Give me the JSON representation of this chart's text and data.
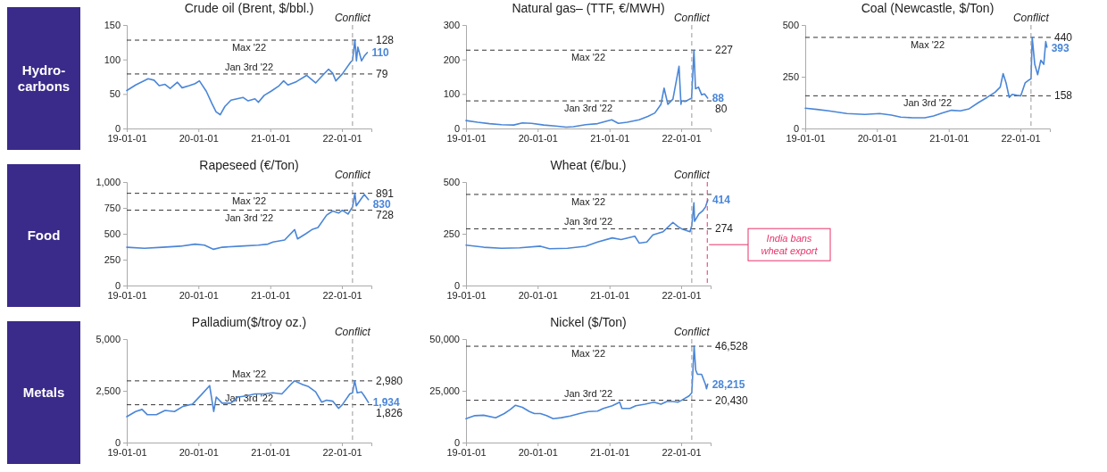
{
  "chart_data": [
    {
      "type": "other",
      "title": "Hydro-carbons"
    },
    {
      "type": "line",
      "title": "Crude oil (Brent, $/bbl.)",
      "xlim": [
        "2019-01-01",
        "2022-05-31"
      ],
      "xticks": [
        {
          "value": "2019-01-01",
          "label": "19-01-01"
        },
        {
          "value": "2020-01-01",
          "label": "20-01-01"
        },
        {
          "value": "2021-01-01",
          "label": "21-01-01"
        },
        {
          "value": "2022-01-01",
          "label": "22-01-01"
        }
      ],
      "ylim": [
        0,
        150
      ],
      "yticks": [
        0,
        50,
        100,
        150
      ],
      "series": [
        {
          "color": "#4a86d8",
          "x": [
            "2019-01-01",
            "2019-02-15",
            "2019-04-20",
            "2019-05-20",
            "2019-06-15",
            "2019-07-15",
            "2019-08-10",
            "2019-09-16",
            "2019-10-10",
            "2019-11-15",
            "2019-12-15",
            "2020-01-06",
            "2020-02-10",
            "2020-03-10",
            "2020-03-31",
            "2020-04-21",
            "2020-05-15",
            "2020-06-15",
            "2020-08-15",
            "2020-09-10",
            "2020-10-15",
            "2020-11-02",
            "2020-12-01",
            "2021-01-05",
            "2021-02-15",
            "2021-03-10",
            "2021-04-01",
            "2021-05-15",
            "2021-07-05",
            "2021-08-20",
            "2021-09-15",
            "2021-10-25",
            "2021-11-15",
            "2021-12-01",
            "2022-01-03",
            "2022-02-14",
            "2022-02-24",
            "2022-03-08",
            "2022-03-16",
            "2022-03-23",
            "2022-04-11",
            "2022-04-25",
            "2022-05-10"
          ],
          "values": [
            55,
            63,
            72,
            70,
            62,
            64,
            58,
            67,
            59,
            62,
            65,
            69,
            54,
            36,
            24,
            20,
            32,
            41,
            45,
            40,
            43,
            38,
            48,
            54,
            62,
            69,
            63,
            68,
            77,
            66,
            74,
            86,
            80,
            69,
            79,
            96,
            99,
            128,
            98,
            118,
            98,
            105,
            110
          ]
        }
      ],
      "ref_lines": [
        {
          "axis": "y",
          "value": 128,
          "label": "Max '22",
          "color": "#333333",
          "line_style": "dashed"
        },
        {
          "axis": "y",
          "value": 79,
          "label": "Jan 3rd '22",
          "color": "#333333",
          "line_style": "dashed"
        },
        {
          "axis": "x",
          "value": "2022-02-24",
          "label": "Conflict",
          "color": "#999999",
          "line_style": "dashed"
        }
      ],
      "annotations": [
        {
          "text": "128",
          "x": "2022-05-31",
          "y": 128
        },
        {
          "text": "79",
          "x": "2022-05-31",
          "y": 79
        },
        {
          "text": "110",
          "x": "2022-05-10",
          "y": 110
        }
      ]
    },
    {
      "type": "line",
      "title": "Natural gas– (TTF, €/MWH)",
      "xlim": [
        "2019-01-01",
        "2022-05-31"
      ],
      "xticks": [
        {
          "value": "2019-01-01",
          "label": "19-01-01"
        },
        {
          "value": "2020-01-01",
          "label": "20-01-01"
        },
        {
          "value": "2021-01-01",
          "label": "21-01-01"
        },
        {
          "value": "2022-01-01",
          "label": "22-01-01"
        }
      ],
      "ylim": [
        0,
        300
      ],
      "yticks": [
        0,
        100,
        200,
        300
      ],
      "series": [
        {
          "color": "#4a86d8",
          "x": [
            "2019-01-01",
            "2019-03-01",
            "2019-05-01",
            "2019-07-01",
            "2019-09-01",
            "2019-10-15",
            "2019-12-01",
            "2020-02-01",
            "2020-04-01",
            "2020-05-25",
            "2020-07-01",
            "2020-09-01",
            "2020-11-01",
            "2021-01-12",
            "2021-02-15",
            "2021-04-01",
            "2021-06-01",
            "2021-07-15",
            "2021-08-20",
            "2021-09-20",
            "2021-10-06",
            "2021-10-25",
            "2021-11-20",
            "2021-12-21",
            "2021-12-31",
            "2022-01-03",
            "2022-01-20",
            "2022-02-23",
            "2022-03-07",
            "2022-03-15",
            "2022-03-30",
            "2022-04-15",
            "2022-04-30",
            "2022-05-16"
          ],
          "values": [
            23,
            18,
            14,
            11,
            10,
            16,
            15,
            10,
            7,
            4,
            5,
            11,
            14,
            25,
            15,
            18,
            25,
            35,
            45,
            70,
            117,
            70,
            85,
            180,
            70,
            80,
            78,
            88,
            227,
            115,
            120,
            98,
            100,
            88
          ]
        }
      ],
      "ref_lines": [
        {
          "axis": "y",
          "value": 227,
          "label": "Max '22",
          "color": "#333333",
          "line_style": "dashed"
        },
        {
          "axis": "y",
          "value": 80,
          "label": "Jan 3rd '22",
          "color": "#333333",
          "line_style": "dashed"
        },
        {
          "axis": "x",
          "value": "2022-02-24",
          "label": "Conflict",
          "color": "#999999",
          "line_style": "dashed"
        }
      ],
      "annotations": [
        {
          "text": "227",
          "x": "2022-05-31",
          "y": 227
        },
        {
          "text": "80",
          "x": "2022-05-31",
          "y": 80
        },
        {
          "text": "88",
          "x": "2022-05-16",
          "y": 88
        }
      ]
    },
    {
      "type": "line",
      "title": "Coal (Newcastle, $/Ton)",
      "xlim": [
        "2019-01-01",
        "2022-05-31"
      ],
      "xticks": [
        {
          "value": "2019-01-01",
          "label": "19-01-01"
        },
        {
          "value": "2020-01-01",
          "label": "20-01-01"
        },
        {
          "value": "2021-01-01",
          "label": "21-01-01"
        },
        {
          "value": "2022-01-01",
          "label": "22-01-01"
        }
      ],
      "ylim": [
        0,
        500
      ],
      "yticks": [
        0,
        250,
        500
      ],
      "series": [
        {
          "color": "#4a86d8",
          "x": [
            "2019-01-01",
            "2019-03-01",
            "2019-05-01",
            "2019-08-01",
            "2019-11-01",
            "2020-01-15",
            "2020-03-15",
            "2020-05-01",
            "2020-07-01",
            "2020-09-01",
            "2020-10-15",
            "2020-12-01",
            "2021-01-15",
            "2021-03-01",
            "2021-04-15",
            "2021-06-01",
            "2021-07-15",
            "2021-08-25",
            "2021-09-20",
            "2021-10-05",
            "2021-10-20",
            "2021-11-05",
            "2021-11-20",
            "2021-12-15",
            "2022-01-03",
            "2022-01-25",
            "2022-02-15",
            "2022-02-24",
            "2022-03-02",
            "2022-03-15",
            "2022-03-30",
            "2022-04-15",
            "2022-04-30",
            "2022-05-10",
            "2022-05-16"
          ],
          "values": [
            98,
            92,
            85,
            72,
            68,
            72,
            65,
            55,
            52,
            52,
            60,
            75,
            88,
            85,
            95,
            125,
            150,
            175,
            200,
            265,
            220,
            150,
            165,
            160,
            158,
            220,
            235,
            240,
            440,
            310,
            260,
            330,
            310,
            420,
            393
          ]
        }
      ],
      "ref_lines": [
        {
          "axis": "y",
          "value": 440,
          "label": "Max '22",
          "color": "#333333",
          "line_style": "dashed"
        },
        {
          "axis": "y",
          "value": 158,
          "label": "Jan 3rd '22",
          "color": "#333333",
          "line_style": "dashed"
        },
        {
          "axis": "x",
          "value": "2022-02-24",
          "label": "Conflict",
          "color": "#999999",
          "line_style": "dashed"
        }
      ],
      "annotations": [
        {
          "text": "440",
          "x": "2022-05-31",
          "y": 440
        },
        {
          "text": "158",
          "x": "2022-05-31",
          "y": 158
        },
        {
          "text": "393",
          "x": "2022-05-16",
          "y": 393
        }
      ]
    },
    {
      "type": "other",
      "title": "Food"
    },
    {
      "type": "line",
      "title": "Rapeseed (€/Ton)",
      "xlim": [
        "2019-01-01",
        "2022-05-31"
      ],
      "xticks": [
        {
          "value": "2019-01-01",
          "label": "19-01-01"
        },
        {
          "value": "2020-01-01",
          "label": "20-01-01"
        },
        {
          "value": "2021-01-01",
          "label": "21-01-01"
        },
        {
          "value": "2022-01-01",
          "label": "22-01-01"
        }
      ],
      "ylim": [
        0,
        1000
      ],
      "yticks": [
        0,
        250,
        500,
        750,
        {
          "value": 1000,
          "label": "1,000"
        }
      ],
      "series": [
        {
          "color": "#4a86d8",
          "x": [
            "2019-01-01",
            "2019-04-01",
            "2019-07-01",
            "2019-10-01",
            "2019-12-15",
            "2020-02-01",
            "2020-03-18",
            "2020-05-01",
            "2020-08-01",
            "2020-11-01",
            "2020-12-20",
            "2021-01-15",
            "2021-03-15",
            "2021-05-05",
            "2021-05-20",
            "2021-07-01",
            "2021-08-01",
            "2021-09-01",
            "2021-10-15",
            "2021-11-15",
            "2021-12-15",
            "2022-01-03",
            "2022-02-01",
            "2022-02-24",
            "2022-03-08",
            "2022-03-15",
            "2022-04-10",
            "2022-04-25",
            "2022-05-16"
          ],
          "values": [
            370,
            360,
            370,
            380,
            400,
            390,
            350,
            370,
            380,
            390,
            400,
            420,
            440,
            540,
            450,
            500,
            540,
            560,
            680,
            720,
            700,
            728,
            690,
            760,
            891,
            770,
            840,
            880,
            830
          ]
        }
      ],
      "ref_lines": [
        {
          "axis": "y",
          "value": 891,
          "label": "Max '22",
          "color": "#333333",
          "line_style": "dashed"
        },
        {
          "axis": "y",
          "value": 728,
          "label": "Jan 3rd '22",
          "color": "#333333",
          "line_style": "dashed"
        },
        {
          "axis": "x",
          "value": "2022-02-24",
          "label": "Conflict",
          "color": "#999999",
          "line_style": "dashed"
        }
      ],
      "annotations": [
        {
          "text": "891",
          "x": "2022-05-31",
          "y": 891
        },
        {
          "text": "728",
          "x": "2022-05-31",
          "y": 728
        },
        {
          "text": "830",
          "x": "2022-05-16",
          "y": 830
        }
      ]
    },
    {
      "type": "line",
      "title": "Wheat (€/bu.)",
      "xlim": [
        "2019-01-01",
        "2022-05-31"
      ],
      "xticks": [
        {
          "value": "2019-01-01",
          "label": "19-01-01"
        },
        {
          "value": "2020-01-01",
          "label": "20-01-01"
        },
        {
          "value": "2021-01-01",
          "label": "21-01-01"
        },
        {
          "value": "2022-01-01",
          "label": "22-01-01"
        }
      ],
      "ylim": [
        0,
        500
      ],
      "yticks": [
        0,
        250,
        500
      ],
      "series": [
        {
          "color": "#4a86d8",
          "x": [
            "2019-01-01",
            "2019-04-01",
            "2019-07-01",
            "2019-10-01",
            "2020-01-15",
            "2020-03-01",
            "2020-06-01",
            "2020-09-01",
            "2020-11-01",
            "2021-01-15",
            "2021-03-01",
            "2021-05-10",
            "2021-06-01",
            "2021-07-10",
            "2021-08-10",
            "2021-10-01",
            "2021-11-20",
            "2021-12-15",
            "2022-01-03",
            "2022-02-15",
            "2022-02-24",
            "2022-03-07",
            "2022-03-10",
            "2022-04-01",
            "2022-04-20",
            "2022-05-05",
            "2022-05-17"
          ],
          "values": [
            195,
            185,
            180,
            182,
            190,
            178,
            180,
            190,
            210,
            230,
            222,
            238,
            205,
            210,
            245,
            260,
            305,
            285,
            274,
            260,
            290,
            400,
            310,
            345,
            360,
            380,
            414
          ]
        }
      ],
      "ref_lines": [
        {
          "axis": "y",
          "value": 440,
          "label": "Max '22",
          "color": "#333333",
          "line_style": "dashed"
        },
        {
          "axis": "y",
          "value": 274,
          "label": "Jan 3rd '22",
          "color": "#333333",
          "line_style": "dashed"
        },
        {
          "axis": "x",
          "value": "2022-02-24",
          "label": "Conflict",
          "color": "#999999",
          "line_style": "dashed"
        },
        {
          "axis": "x",
          "value": "2022-05-14",
          "label": "India bans wheat export",
          "color": "#e8336b",
          "line_style": "dashed"
        }
      ],
      "annotations": [
        {
          "text": "274",
          "x": "2022-05-31",
          "y": 274
        },
        {
          "text": "414",
          "x": "2022-05-17",
          "y": 414
        }
      ]
    },
    {
      "type": "other",
      "title": "Metals"
    },
    {
      "type": "line",
      "title": "Palladium($/troy oz.)",
      "xlim": [
        "2019-01-01",
        "2022-05-31"
      ],
      "xticks": [
        {
          "value": "2019-01-01",
          "label": "19-01-01"
        },
        {
          "value": "2020-01-01",
          "label": "20-01-01"
        },
        {
          "value": "2021-01-01",
          "label": "21-01-01"
        },
        {
          "value": "2022-01-01",
          "label": "22-01-01"
        }
      ],
      "ylim": [
        0,
        5000
      ],
      "yticks": [
        0,
        {
          "value": 2500,
          "label": "2,500"
        },
        {
          "value": 5000,
          "label": "5,000"
        }
      ],
      "series": [
        {
          "color": "#4a86d8",
          "x": [
            "2019-01-01",
            "2019-02-15",
            "2019-03-20",
            "2019-04-15",
            "2019-06-01",
            "2019-07-15",
            "2019-09-01",
            "2019-10-15",
            "2019-12-01",
            "2020-01-15",
            "2020-02-27",
            "2020-03-19",
            "2020-04-01",
            "2020-05-01",
            "2020-06-15",
            "2020-07-20",
            "2020-09-01",
            "2020-10-15",
            "2020-12-01",
            "2021-01-15",
            "2021-03-01",
            "2021-04-15",
            "2021-05-04",
            "2021-06-15",
            "2021-07-15",
            "2021-08-20",
            "2021-09-20",
            "2021-10-15",
            "2021-11-15",
            "2021-12-15",
            "2022-01-03",
            "2022-02-10",
            "2022-02-24",
            "2022-03-07",
            "2022-03-20",
            "2022-04-10",
            "2022-04-25",
            "2022-05-16"
          ],
          "values": [
            1250,
            1500,
            1600,
            1350,
            1350,
            1550,
            1500,
            1750,
            1850,
            2300,
            2750,
            1500,
            2200,
            1900,
            1900,
            2200,
            2250,
            2350,
            2350,
            2400,
            2350,
            2800,
            2980,
            2800,
            2700,
            2450,
            1950,
            2050,
            2000,
            1650,
            1826,
            2350,
            2400,
            2980,
            2400,
            2450,
            2250,
            1934
          ]
        }
      ],
      "ref_lines": [
        {
          "axis": "y",
          "value": 2980,
          "label": "Max '22",
          "color": "#333333",
          "line_style": "dashed"
        },
        {
          "axis": "y",
          "value": 1826,
          "label": "Jan 3rd '22",
          "color": "#333333",
          "line_style": "dashed"
        },
        {
          "axis": "x",
          "value": "2022-02-24",
          "label": "Conflict",
          "color": "#999999",
          "line_style": "dashed"
        }
      ],
      "annotations": [
        {
          "text": "2,980",
          "x": "2022-05-31",
          "y": 2980
        },
        {
          "text": "1,826",
          "x": "2022-05-31",
          "y": 1826
        },
        {
          "text": "1,934",
          "x": "2022-05-16",
          "y": 1934
        }
      ]
    },
    {
      "type": "line",
      "title": "Nickel ($/Ton)",
      "xlim": [
        "2019-01-01",
        "2022-05-31"
      ],
      "xticks": [
        {
          "value": "2019-01-01",
          "label": "19-01-01"
        },
        {
          "value": "2020-01-01",
          "label": "20-01-01"
        },
        {
          "value": "2021-01-01",
          "label": "21-01-01"
        },
        {
          "value": "2022-01-01",
          "label": "22-01-01"
        }
      ],
      "ylim": [
        0,
        50000
      ],
      "yticks": [
        0,
        {
          "value": 25000,
          "label": "25,000"
        },
        {
          "value": 50000,
          "label": "50,000"
        }
      ],
      "series": [
        {
          "color": "#4a86d8",
          "x": [
            "2019-01-01",
            "2019-02-15",
            "2019-04-01",
            "2019-06-01",
            "2019-07-15",
            "2019-08-15",
            "2019-09-10",
            "2019-10-15",
            "2019-11-20",
            "2019-12-15",
            "2020-01-15",
            "2020-02-15",
            "2020-03-20",
            "2020-05-01",
            "2020-06-15",
            "2020-08-01",
            "2020-09-15",
            "2020-11-01",
            "2020-12-01",
            "2021-01-15",
            "2021-02-22",
            "2021-03-05",
            "2021-04-15",
            "2021-05-15",
            "2021-07-01",
            "2021-08-15",
            "2021-09-20",
            "2021-10-20",
            "2021-11-20",
            "2021-12-15",
            "2022-01-03",
            "2022-02-10",
            "2022-02-24",
            "2022-03-08",
            "2022-03-16",
            "2022-03-25",
            "2022-04-15",
            "2022-05-05",
            "2022-05-10",
            "2022-05-16"
          ],
          "values": [
            11500,
            13000,
            13200,
            12000,
            14000,
            16000,
            18000,
            17000,
            15000,
            14000,
            14000,
            13000,
            11500,
            12000,
            12800,
            14000,
            15000,
            15200,
            16500,
            17800,
            19500,
            16500,
            16500,
            17800,
            18500,
            19500,
            18500,
            19800,
            19800,
            19500,
            20430,
            22500,
            24000,
            46528,
            35000,
            33000,
            33000,
            28000,
            26000,
            28215
          ]
        }
      ],
      "ref_lines": [
        {
          "axis": "y",
          "value": 46528,
          "label": "Max '22",
          "color": "#333333",
          "line_style": "dashed"
        },
        {
          "axis": "y",
          "value": 20430,
          "label": "Jan 3rd '22",
          "color": "#333333",
          "line_style": "dashed"
        },
        {
          "axis": "x",
          "value": "2022-02-24",
          "label": "Conflict",
          "color": "#999999",
          "line_style": "dashed"
        }
      ],
      "annotations": [
        {
          "text": "46,528",
          "x": "2022-05-31",
          "y": 46528
        },
        {
          "text": "20,430",
          "x": "2022-05-31",
          "y": 20430
        },
        {
          "text": "28,215",
          "x": "2022-05-16",
          "y": 28215
        }
      ]
    }
  ]
}
